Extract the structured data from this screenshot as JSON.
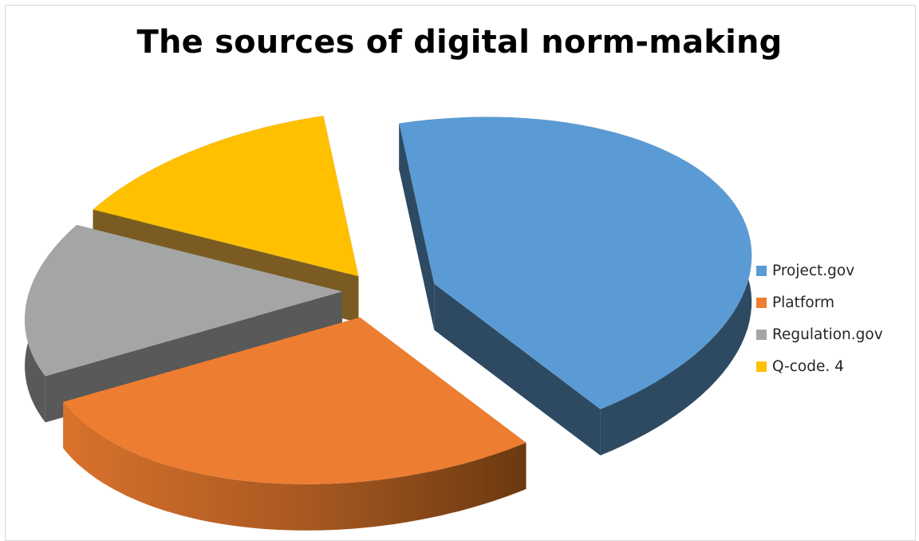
{
  "chart_data": {
    "type": "pie",
    "style": "3d-exploded",
    "title": "The sources of digital norm-making",
    "legend_position": "right",
    "series": [
      {
        "name": "Project.gov",
        "value": 43,
        "color": "#5B9BD5"
      },
      {
        "name": "Platform",
        "value": 28,
        "color": "#ED7D31"
      },
      {
        "name": "Regulation.gov",
        "value": 15,
        "color": "#A5A5A5"
      },
      {
        "name": "Q-code. 4",
        "value": 14,
        "color": "#FFC000"
      }
    ]
  }
}
